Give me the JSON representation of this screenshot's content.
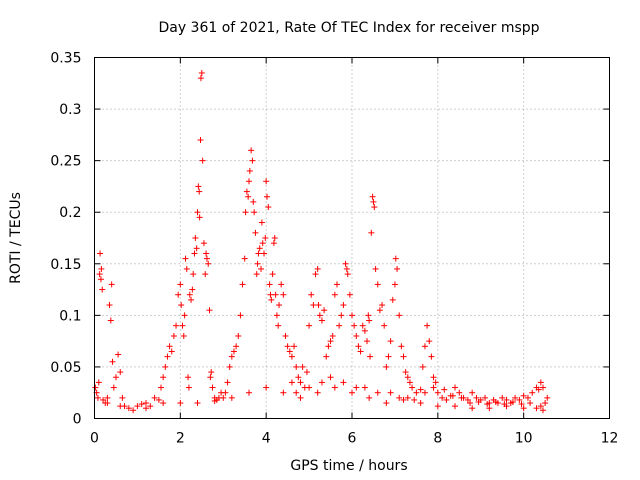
{
  "chart_data": {
    "type": "scatter",
    "title": "Day 361 of 2021, Rate Of TEC Index for receiver mspp",
    "xlabel": "GPS time / hours",
    "ylabel": "ROTI / TECUs",
    "xlim": [
      0,
      12
    ],
    "ylim": [
      0,
      0.35
    ],
    "xticks": [
      "0",
      "2",
      "4",
      "6",
      "8",
      "10",
      "12"
    ],
    "yticks": [
      "0",
      "0.05",
      "0.1",
      "0.15",
      "0.2",
      "0.25",
      "0.3",
      "0.35"
    ],
    "grid": true,
    "marker": "+",
    "color": "#ff0000",
    "series": [
      {
        "name": "ROTI",
        "points": [
          [
            0.02,
            0.03
          ],
          [
            0.05,
            0.025
          ],
          [
            0.08,
            0.02
          ],
          [
            0.1,
            0.035
          ],
          [
            0.12,
            0.14
          ],
          [
            0.13,
            0.16
          ],
          [
            0.15,
            0.135
          ],
          [
            0.16,
            0.145
          ],
          [
            0.18,
            0.125
          ],
          [
            0.2,
            0.018
          ],
          [
            0.25,
            0.015
          ],
          [
            0.3,
            0.02
          ],
          [
            0.35,
            0.11
          ],
          [
            0.38,
            0.095
          ],
          [
            0.4,
            0.13
          ],
          [
            0.42,
            0.055
          ],
          [
            0.45,
            0.03
          ],
          [
            0.5,
            0.04
          ],
          [
            0.55,
            0.062
          ],
          [
            0.6,
            0.045
          ],
          [
            0.65,
            0.02
          ],
          [
            0.7,
            0.012
          ],
          [
            0.8,
            0.01
          ],
          [
            0.9,
            0.008
          ],
          [
            1.0,
            0.012
          ],
          [
            1.1,
            0.014
          ],
          [
            1.2,
            0.01
          ],
          [
            1.3,
            0.012
          ],
          [
            1.4,
            0.02
          ],
          [
            1.5,
            0.018
          ],
          [
            1.55,
            0.03
          ],
          [
            1.6,
            0.04
          ],
          [
            1.65,
            0.05
          ],
          [
            1.7,
            0.06
          ],
          [
            1.75,
            0.07
          ],
          [
            1.8,
            0.065
          ],
          [
            1.85,
            0.08
          ],
          [
            1.9,
            0.09
          ],
          [
            1.95,
            0.12
          ],
          [
            2.0,
            0.13
          ],
          [
            2.02,
            0.11
          ],
          [
            2.05,
            0.09
          ],
          [
            2.08,
            0.08
          ],
          [
            2.1,
            0.1
          ],
          [
            2.12,
            0.155
          ],
          [
            2.15,
            0.145
          ],
          [
            2.18,
            0.04
          ],
          [
            2.2,
            0.03
          ],
          [
            2.22,
            0.12
          ],
          [
            2.25,
            0.115
          ],
          [
            2.28,
            0.125
          ],
          [
            2.3,
            0.14
          ],
          [
            2.33,
            0.16
          ],
          [
            2.35,
            0.175
          ],
          [
            2.38,
            0.165
          ],
          [
            2.4,
            0.2
          ],
          [
            2.42,
            0.225
          ],
          [
            2.44,
            0.22
          ],
          [
            2.45,
            0.195
          ],
          [
            2.47,
            0.27
          ],
          [
            2.48,
            0.33
          ],
          [
            2.5,
            0.335
          ],
          [
            2.52,
            0.25
          ],
          [
            2.55,
            0.17
          ],
          [
            2.58,
            0.14
          ],
          [
            2.6,
            0.16
          ],
          [
            2.62,
            0.155
          ],
          [
            2.65,
            0.15
          ],
          [
            2.68,
            0.105
          ],
          [
            2.7,
            0.04
          ],
          [
            2.72,
            0.045
          ],
          [
            2.75,
            0.03
          ],
          [
            2.8,
            0.02
          ],
          [
            2.85,
            0.018
          ],
          [
            2.9,
            0.02
          ],
          [
            2.95,
            0.025
          ],
          [
            3.0,
            0.02
          ],
          [
            3.05,
            0.025
          ],
          [
            3.1,
            0.035
          ],
          [
            3.15,
            0.05
          ],
          [
            3.2,
            0.06
          ],
          [
            3.25,
            0.065
          ],
          [
            3.3,
            0.07
          ],
          [
            3.35,
            0.08
          ],
          [
            3.4,
            0.1
          ],
          [
            3.45,
            0.13
          ],
          [
            3.5,
            0.155
          ],
          [
            3.52,
            0.2
          ],
          [
            3.55,
            0.22
          ],
          [
            3.58,
            0.215
          ],
          [
            3.6,
            0.23
          ],
          [
            3.62,
            0.24
          ],
          [
            3.65,
            0.26
          ],
          [
            3.68,
            0.25
          ],
          [
            3.7,
            0.21
          ],
          [
            3.72,
            0.2
          ],
          [
            3.75,
            0.18
          ],
          [
            3.78,
            0.14
          ],
          [
            3.8,
            0.15
          ],
          [
            3.82,
            0.16
          ],
          [
            3.85,
            0.165
          ],
          [
            3.88,
            0.145
          ],
          [
            3.9,
            0.19
          ],
          [
            3.92,
            0.17
          ],
          [
            3.95,
            0.16
          ],
          [
            3.98,
            0.175
          ],
          [
            4.0,
            0.23
          ],
          [
            4.02,
            0.215
          ],
          [
            4.05,
            0.205
          ],
          [
            4.08,
            0.13
          ],
          [
            4.1,
            0.12
          ],
          [
            4.12,
            0.115
          ],
          [
            4.15,
            0.14
          ],
          [
            4.18,
            0.17
          ],
          [
            4.2,
            0.175
          ],
          [
            4.22,
            0.12
          ],
          [
            4.25,
            0.1
          ],
          [
            4.28,
            0.09
          ],
          [
            4.3,
            0.11
          ],
          [
            4.35,
            0.13
          ],
          [
            4.4,
            0.12
          ],
          [
            4.45,
            0.08
          ],
          [
            4.5,
            0.07
          ],
          [
            4.55,
            0.065
          ],
          [
            4.6,
            0.06
          ],
          [
            4.65,
            0.07
          ],
          [
            4.7,
            0.05
          ],
          [
            4.75,
            0.04
          ],
          [
            4.8,
            0.035
          ],
          [
            4.85,
            0.05
          ],
          [
            4.9,
            0.03
          ],
          [
            4.95,
            0.045
          ],
          [
            5.0,
            0.09
          ],
          [
            5.05,
            0.12
          ],
          [
            5.1,
            0.11
          ],
          [
            5.15,
            0.14
          ],
          [
            5.2,
            0.145
          ],
          [
            5.22,
            0.11
          ],
          [
            5.25,
            0.1
          ],
          [
            5.3,
            0.095
          ],
          [
            5.35,
            0.105
          ],
          [
            5.4,
            0.06
          ],
          [
            5.45,
            0.07
          ],
          [
            5.5,
            0.075
          ],
          [
            5.55,
            0.08
          ],
          [
            5.6,
            0.12
          ],
          [
            5.65,
            0.13
          ],
          [
            5.7,
            0.09
          ],
          [
            5.75,
            0.1
          ],
          [
            5.8,
            0.11
          ],
          [
            5.85,
            0.15
          ],
          [
            5.88,
            0.145
          ],
          [
            5.9,
            0.14
          ],
          [
            5.95,
            0.12
          ],
          [
            6.0,
            0.1
          ],
          [
            6.05,
            0.09
          ],
          [
            6.1,
            0.08
          ],
          [
            6.15,
            0.07
          ],
          [
            6.2,
            0.065
          ],
          [
            6.25,
            0.09
          ],
          [
            6.3,
            0.085
          ],
          [
            6.35,
            0.075
          ],
          [
            6.38,
            0.1
          ],
          [
            6.4,
            0.095
          ],
          [
            6.42,
            0.06
          ],
          [
            6.45,
            0.18
          ],
          [
            6.48,
            0.215
          ],
          [
            6.5,
            0.21
          ],
          [
            6.52,
            0.205
          ],
          [
            6.55,
            0.145
          ],
          [
            6.6,
            0.13
          ],
          [
            6.65,
            0.105
          ],
          [
            6.7,
            0.11
          ],
          [
            6.75,
            0.09
          ],
          [
            6.8,
            0.05
          ],
          [
            6.85,
            0.06
          ],
          [
            6.9,
            0.075
          ],
          [
            6.95,
            0.115
          ],
          [
            7.0,
            0.13
          ],
          [
            7.02,
            0.155
          ],
          [
            7.05,
            0.145
          ],
          [
            7.1,
            0.1
          ],
          [
            7.15,
            0.07
          ],
          [
            7.2,
            0.06
          ],
          [
            7.25,
            0.045
          ],
          [
            7.3,
            0.04
          ],
          [
            7.35,
            0.035
          ],
          [
            7.4,
            0.03
          ],
          [
            7.5,
            0.025
          ],
          [
            7.6,
            0.028
          ],
          [
            7.65,
            0.05
          ],
          [
            7.7,
            0.07
          ],
          [
            7.75,
            0.09
          ],
          [
            7.8,
            0.075
          ],
          [
            7.85,
            0.06
          ],
          [
            7.9,
            0.04
          ],
          [
            7.95,
            0.035
          ],
          [
            8.0,
            0.025
          ],
          [
            8.1,
            0.02
          ],
          [
            8.2,
            0.018
          ],
          [
            8.3,
            0.022
          ],
          [
            8.4,
            0.03
          ],
          [
            8.5,
            0.025
          ],
          [
            8.6,
            0.02
          ],
          [
            8.7,
            0.018
          ],
          [
            8.8,
            0.025
          ],
          [
            8.9,
            0.02
          ],
          [
            9.0,
            0.018
          ],
          [
            9.1,
            0.02
          ],
          [
            9.2,
            0.015
          ],
          [
            9.3,
            0.018
          ],
          [
            9.4,
            0.015
          ],
          [
            9.5,
            0.02
          ],
          [
            9.6,
            0.018
          ],
          [
            9.7,
            0.015
          ],
          [
            9.8,
            0.02
          ],
          [
            9.9,
            0.018
          ],
          [
            10.0,
            0.022
          ],
          [
            10.1,
            0.02
          ],
          [
            10.2,
            0.025
          ],
          [
            10.3,
            0.03
          ],
          [
            10.35,
            0.028
          ],
          [
            10.4,
            0.035
          ],
          [
            10.45,
            0.03
          ],
          [
            10.5,
            0.015
          ],
          [
            10.55,
            0.02
          ],
          [
            0.3,
            0.015
          ],
          [
            0.6,
            0.012
          ],
          [
            1.2,
            0.015
          ],
          [
            1.6,
            0.015
          ],
          [
            2.0,
            0.015
          ],
          [
            2.4,
            0.015
          ],
          [
            2.8,
            0.017
          ],
          [
            3.2,
            0.02
          ],
          [
            3.6,
            0.025
          ],
          [
            4.0,
            0.03
          ],
          [
            4.4,
            0.025
          ],
          [
            4.8,
            0.02
          ],
          [
            5.2,
            0.025
          ],
          [
            5.6,
            0.03
          ],
          [
            6.0,
            0.025
          ],
          [
            6.4,
            0.02
          ],
          [
            6.8,
            0.015
          ],
          [
            7.2,
            0.018
          ],
          [
            7.6,
            0.015
          ],
          [
            8.0,
            0.012
          ],
          [
            8.4,
            0.012
          ],
          [
            8.8,
            0.01
          ],
          [
            9.2,
            0.01
          ],
          [
            9.6,
            0.012
          ],
          [
            10.0,
            0.01
          ],
          [
            10.4,
            0.012
          ],
          [
            4.6,
            0.035
          ],
          [
            4.7,
            0.025
          ],
          [
            5.0,
            0.03
          ],
          [
            5.3,
            0.035
          ],
          [
            5.5,
            0.04
          ],
          [
            5.8,
            0.035
          ],
          [
            6.1,
            0.03
          ],
          [
            6.3,
            0.03
          ],
          [
            6.6,
            0.025
          ],
          [
            6.9,
            0.025
          ],
          [
            7.1,
            0.02
          ],
          [
            7.3,
            0.02
          ],
          [
            7.45,
            0.018
          ],
          [
            7.7,
            0.025
          ],
          [
            7.9,
            0.03
          ],
          [
            8.15,
            0.028
          ],
          [
            8.35,
            0.022
          ],
          [
            8.55,
            0.02
          ],
          [
            8.75,
            0.015
          ],
          [
            8.95,
            0.016
          ],
          [
            9.15,
            0.014
          ],
          [
            9.35,
            0.016
          ],
          [
            9.55,
            0.014
          ],
          [
            9.75,
            0.016
          ],
          [
            9.95,
            0.014
          ],
          [
            10.15,
            0.015
          ],
          [
            10.3,
            0.01
          ],
          [
            10.45,
            0.008
          ]
        ]
      }
    ]
  }
}
